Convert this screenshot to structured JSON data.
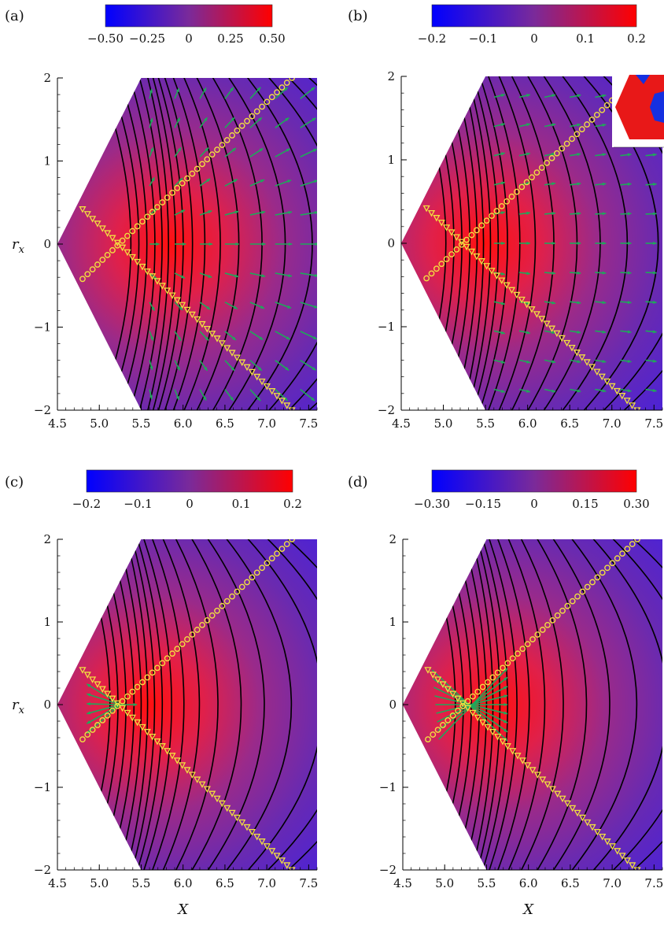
{
  "chart_data": [
    {
      "panel": "a",
      "panel_label": "(a)",
      "type": "heatmap",
      "colorbar": {
        "min": -0.5,
        "max": 0.5,
        "ticks": [
          "−0.50",
          "−0.25",
          "0",
          "0.25",
          "0.50"
        ],
        "colors": [
          "#0000ff",
          "#7a2a9a",
          "#ff0000"
        ]
      },
      "xlabel": "",
      "ylabel": "r_x",
      "xticks": [
        "4.5",
        "5.0",
        "5.5",
        "6.0",
        "6.5",
        "7.0",
        "7.5"
      ],
      "yticks": [
        "−2",
        "−1",
        "0",
        "1",
        "2"
      ],
      "xlim": [
        4.5,
        7.6
      ],
      "ylim": [
        -2,
        2
      ],
      "domain_polygon": [
        [
          5.5,
          2
        ],
        [
          7.6,
          2
        ],
        [
          7.6,
          -2
        ],
        [
          5.5,
          -2
        ],
        [
          4.5,
          0
        ]
      ],
      "peak": {
        "x": 5.85,
        "y": 0,
        "sign": "positive"
      },
      "vectors": "radial-outward",
      "markers": {
        "circles_line": [
          [
            4.8,
            -0.42
          ],
          [
            7.3,
            2.0
          ]
        ],
        "triangles_line": [
          [
            4.8,
            0.42
          ],
          [
            7.3,
            -2.0
          ]
        ],
        "center": [
          5.2,
          0
        ]
      }
    },
    {
      "panel": "b",
      "panel_label": "(b)",
      "type": "heatmap",
      "colorbar": {
        "min": -0.2,
        "max": 0.2,
        "ticks": [
          "−0.2",
          "−0.1",
          "0",
          "0.1",
          "0.2"
        ],
        "colors": [
          "#0000ff",
          "#7a2a9a",
          "#ff0000"
        ]
      },
      "xlabel": "",
      "ylabel": "",
      "xticks": [
        "4.5",
        "5.0",
        "5.5",
        "6.0",
        "6.5",
        "7.0",
        "7.5"
      ],
      "yticks": [
        "−2",
        "−1",
        "0",
        "1",
        "2"
      ],
      "xlim": [
        4.5,
        7.6
      ],
      "ylim": [
        -2,
        2
      ],
      "domain_polygon": [
        [
          5.5,
          2
        ],
        [
          7.6,
          2
        ],
        [
          7.6,
          -2
        ],
        [
          5.5,
          -2
        ],
        [
          4.5,
          0
        ]
      ],
      "peak": {
        "x": 5.5,
        "y": 0,
        "sign": "positive"
      },
      "vectors": "rightward",
      "inset": "hexagon-red-blue",
      "markers": {
        "circles_line": [
          [
            4.8,
            -0.42
          ],
          [
            7.3,
            2.0
          ]
        ],
        "triangles_line": [
          [
            4.8,
            0.42
          ],
          [
            7.3,
            -2.0
          ]
        ],
        "center": [
          5.25,
          0
        ]
      }
    },
    {
      "panel": "c",
      "panel_label": "(c)",
      "type": "heatmap",
      "colorbar": {
        "min": -0.2,
        "max": 0.2,
        "ticks": [
          "−0.2",
          "−0.1",
          "0",
          "0.1",
          "0.2"
        ],
        "colors": [
          "#0000ff",
          "#7a2a9a",
          "#ff0000"
        ]
      },
      "xlabel": "X",
      "ylabel": "r_x",
      "xticks": [
        "4.5",
        "5.0",
        "5.5",
        "6.0",
        "6.5",
        "7.0",
        "7.5"
      ],
      "yticks": [
        "−2",
        "−1",
        "0",
        "1",
        "2"
      ],
      "xlim": [
        4.5,
        7.6
      ],
      "ylim": [
        -2,
        2
      ],
      "domain_polygon": [
        [
          5.5,
          2
        ],
        [
          7.6,
          2
        ],
        [
          7.6,
          -2
        ],
        [
          5.5,
          -2
        ],
        [
          4.5,
          0
        ]
      ],
      "peak": {
        "x": 5.6,
        "y": 0,
        "sign": "positive"
      },
      "vectors": "left-local",
      "markers": {
        "circles_line": [
          [
            4.8,
            -0.42
          ],
          [
            7.3,
            2.0
          ]
        ],
        "triangles_line": [
          [
            4.8,
            0.42
          ],
          [
            7.3,
            -2.0
          ]
        ],
        "center": [
          5.25,
          0
        ]
      }
    },
    {
      "panel": "d",
      "panel_label": "(d)",
      "type": "heatmap",
      "colorbar": {
        "min": -0.3,
        "max": 0.3,
        "ticks": [
          "−0.30",
          "−0.15",
          "0",
          "0.15",
          "0.30"
        ],
        "colors": [
          "#0000ff",
          "#7a2a9a",
          "#ff0000"
        ]
      },
      "xlabel": "X",
      "ylabel": "",
      "xticks": [
        "4.5",
        "5.0",
        "5.5",
        "6.0",
        "6.5",
        "7.0",
        "7.5"
      ],
      "yticks": [
        "−2",
        "−1",
        "0",
        "1",
        "2"
      ],
      "xlim": [
        4.5,
        7.6
      ],
      "ylim": [
        -2,
        2
      ],
      "domain_polygon": [
        [
          5.5,
          2
        ],
        [
          7.6,
          2
        ],
        [
          7.6,
          -2
        ],
        [
          5.5,
          -2
        ],
        [
          4.5,
          0
        ]
      ],
      "peak": {
        "x": 5.6,
        "y": 0,
        "sign": "positive"
      },
      "vectors": "hourglass",
      "markers": {
        "circles_line": [
          [
            4.8,
            -0.42
          ],
          [
            7.3,
            2.0
          ]
        ],
        "triangles_line": [
          [
            4.8,
            0.42
          ],
          [
            7.3,
            -2.0
          ]
        ],
        "center": [
          5.25,
          0
        ]
      }
    }
  ]
}
